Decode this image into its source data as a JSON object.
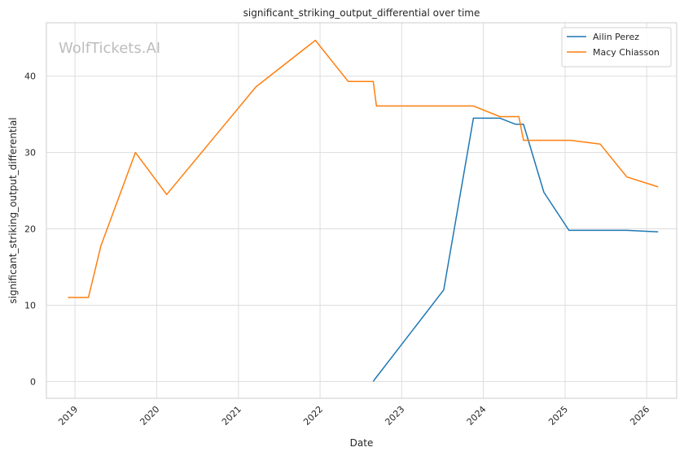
{
  "chart_data": {
    "type": "line",
    "title": "significant_striking_output_differential over time",
    "xlabel": "Date",
    "ylabel": "significant_striking_output_differential",
    "watermark": "WolfTickets.AI",
    "x_ticks": [
      "2019",
      "2020",
      "2021",
      "2022",
      "2023",
      "2024",
      "2025",
      "2026"
    ],
    "y_ticks": [
      0,
      10,
      20,
      30,
      40
    ],
    "xlim": [
      "2018-08-26",
      "2026-05-15"
    ],
    "ylim": [
      -2.2,
      47
    ],
    "grid": true,
    "legend_position": "top-right",
    "series": [
      {
        "name": "Ailin Perez",
        "color": "#1f77b4",
        "points": [
          [
            "2022-08-27",
            0.0
          ],
          [
            "2022-09-03",
            0.3
          ],
          [
            "2023-07-08",
            12.0
          ],
          [
            "2023-11-18",
            34.5
          ],
          [
            "2024-03-16",
            34.5
          ],
          [
            "2024-05-25",
            33.7
          ],
          [
            "2024-06-29",
            33.7
          ],
          [
            "2024-09-28",
            24.8
          ],
          [
            "2025-01-18",
            19.8
          ],
          [
            "2025-10-04",
            19.8
          ],
          [
            "2026-02-21",
            19.6
          ]
        ]
      },
      {
        "name": "Macy Chiasson",
        "color": "#ff7f0e",
        "points": [
          [
            "2018-11-30",
            11.0
          ],
          [
            "2019-03-02",
            11.0
          ],
          [
            "2019-04-27",
            17.8
          ],
          [
            "2019-09-28",
            30.0
          ],
          [
            "2020-02-15",
            24.5
          ],
          [
            "2021-03-20",
            38.6
          ],
          [
            "2021-12-11",
            44.7
          ],
          [
            "2022-05-07",
            39.3
          ],
          [
            "2022-08-27",
            39.3
          ],
          [
            "2022-09-10",
            36.1
          ],
          [
            "2023-11-18",
            36.1
          ],
          [
            "2024-03-16",
            34.7
          ],
          [
            "2024-06-08",
            34.7
          ],
          [
            "2024-06-29",
            31.6
          ],
          [
            "2025-01-25",
            31.6
          ],
          [
            "2025-06-07",
            31.1
          ],
          [
            "2025-10-04",
            26.8
          ],
          [
            "2026-02-21",
            25.5
          ]
        ]
      }
    ]
  }
}
